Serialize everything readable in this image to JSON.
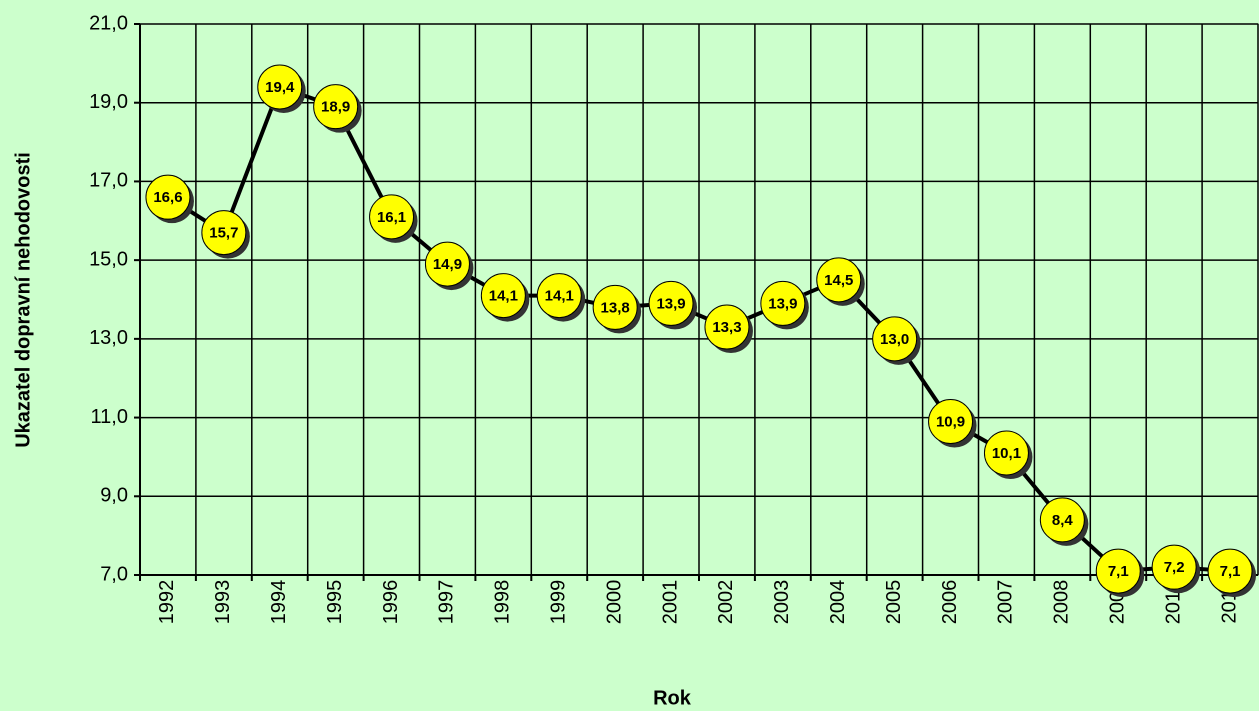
{
  "chart_data": {
    "type": "line",
    "x_label": "Rok",
    "y_label": "Ukazatel dopravní nehodovosti",
    "categories": [
      "1992",
      "1993",
      "1994",
      "1995",
      "1996",
      "1997",
      "1998",
      "1999",
      "2000",
      "2001",
      "2002",
      "2003",
      "2004",
      "2005",
      "2006",
      "2007",
      "2008",
      "2009",
      "2010",
      "2011"
    ],
    "series": [
      {
        "name": "Ukazatel dopravní nehodovosti",
        "color": "#000000",
        "marker_color": "#ffff00",
        "values": [
          16.6,
          15.7,
          19.4,
          18.9,
          16.1,
          14.9,
          14.1,
          14.1,
          13.8,
          13.9,
          13.3,
          13.9,
          14.5,
          13.0,
          10.9,
          10.1,
          8.4,
          7.1,
          7.2,
          7.1
        ],
        "value_labels": [
          "16,6",
          "15,7",
          "19,4",
          "18,9",
          "16,1",
          "14,9",
          "14,1",
          "14,1",
          "13,8",
          "13,9",
          "13,3",
          "13,9",
          "14,5",
          "13,0",
          "10,9",
          "10,1",
          "8,4",
          "7,1",
          "7,2",
          "7,1"
        ]
      }
    ],
    "ylim": [
      7,
      21
    ],
    "yticks": [
      {
        "value": 7,
        "label": "7,0"
      },
      {
        "value": 9,
        "label": "9,0"
      },
      {
        "value": 11,
        "label": "11,0"
      },
      {
        "value": 13,
        "label": "13,0"
      },
      {
        "value": 15,
        "label": "15,0"
      },
      {
        "value": 17,
        "label": "17,0"
      },
      {
        "value": 19,
        "label": "19,0"
      },
      {
        "value": 21,
        "label": "21,0"
      }
    ],
    "grid": true,
    "background": "#ccffcc"
  }
}
